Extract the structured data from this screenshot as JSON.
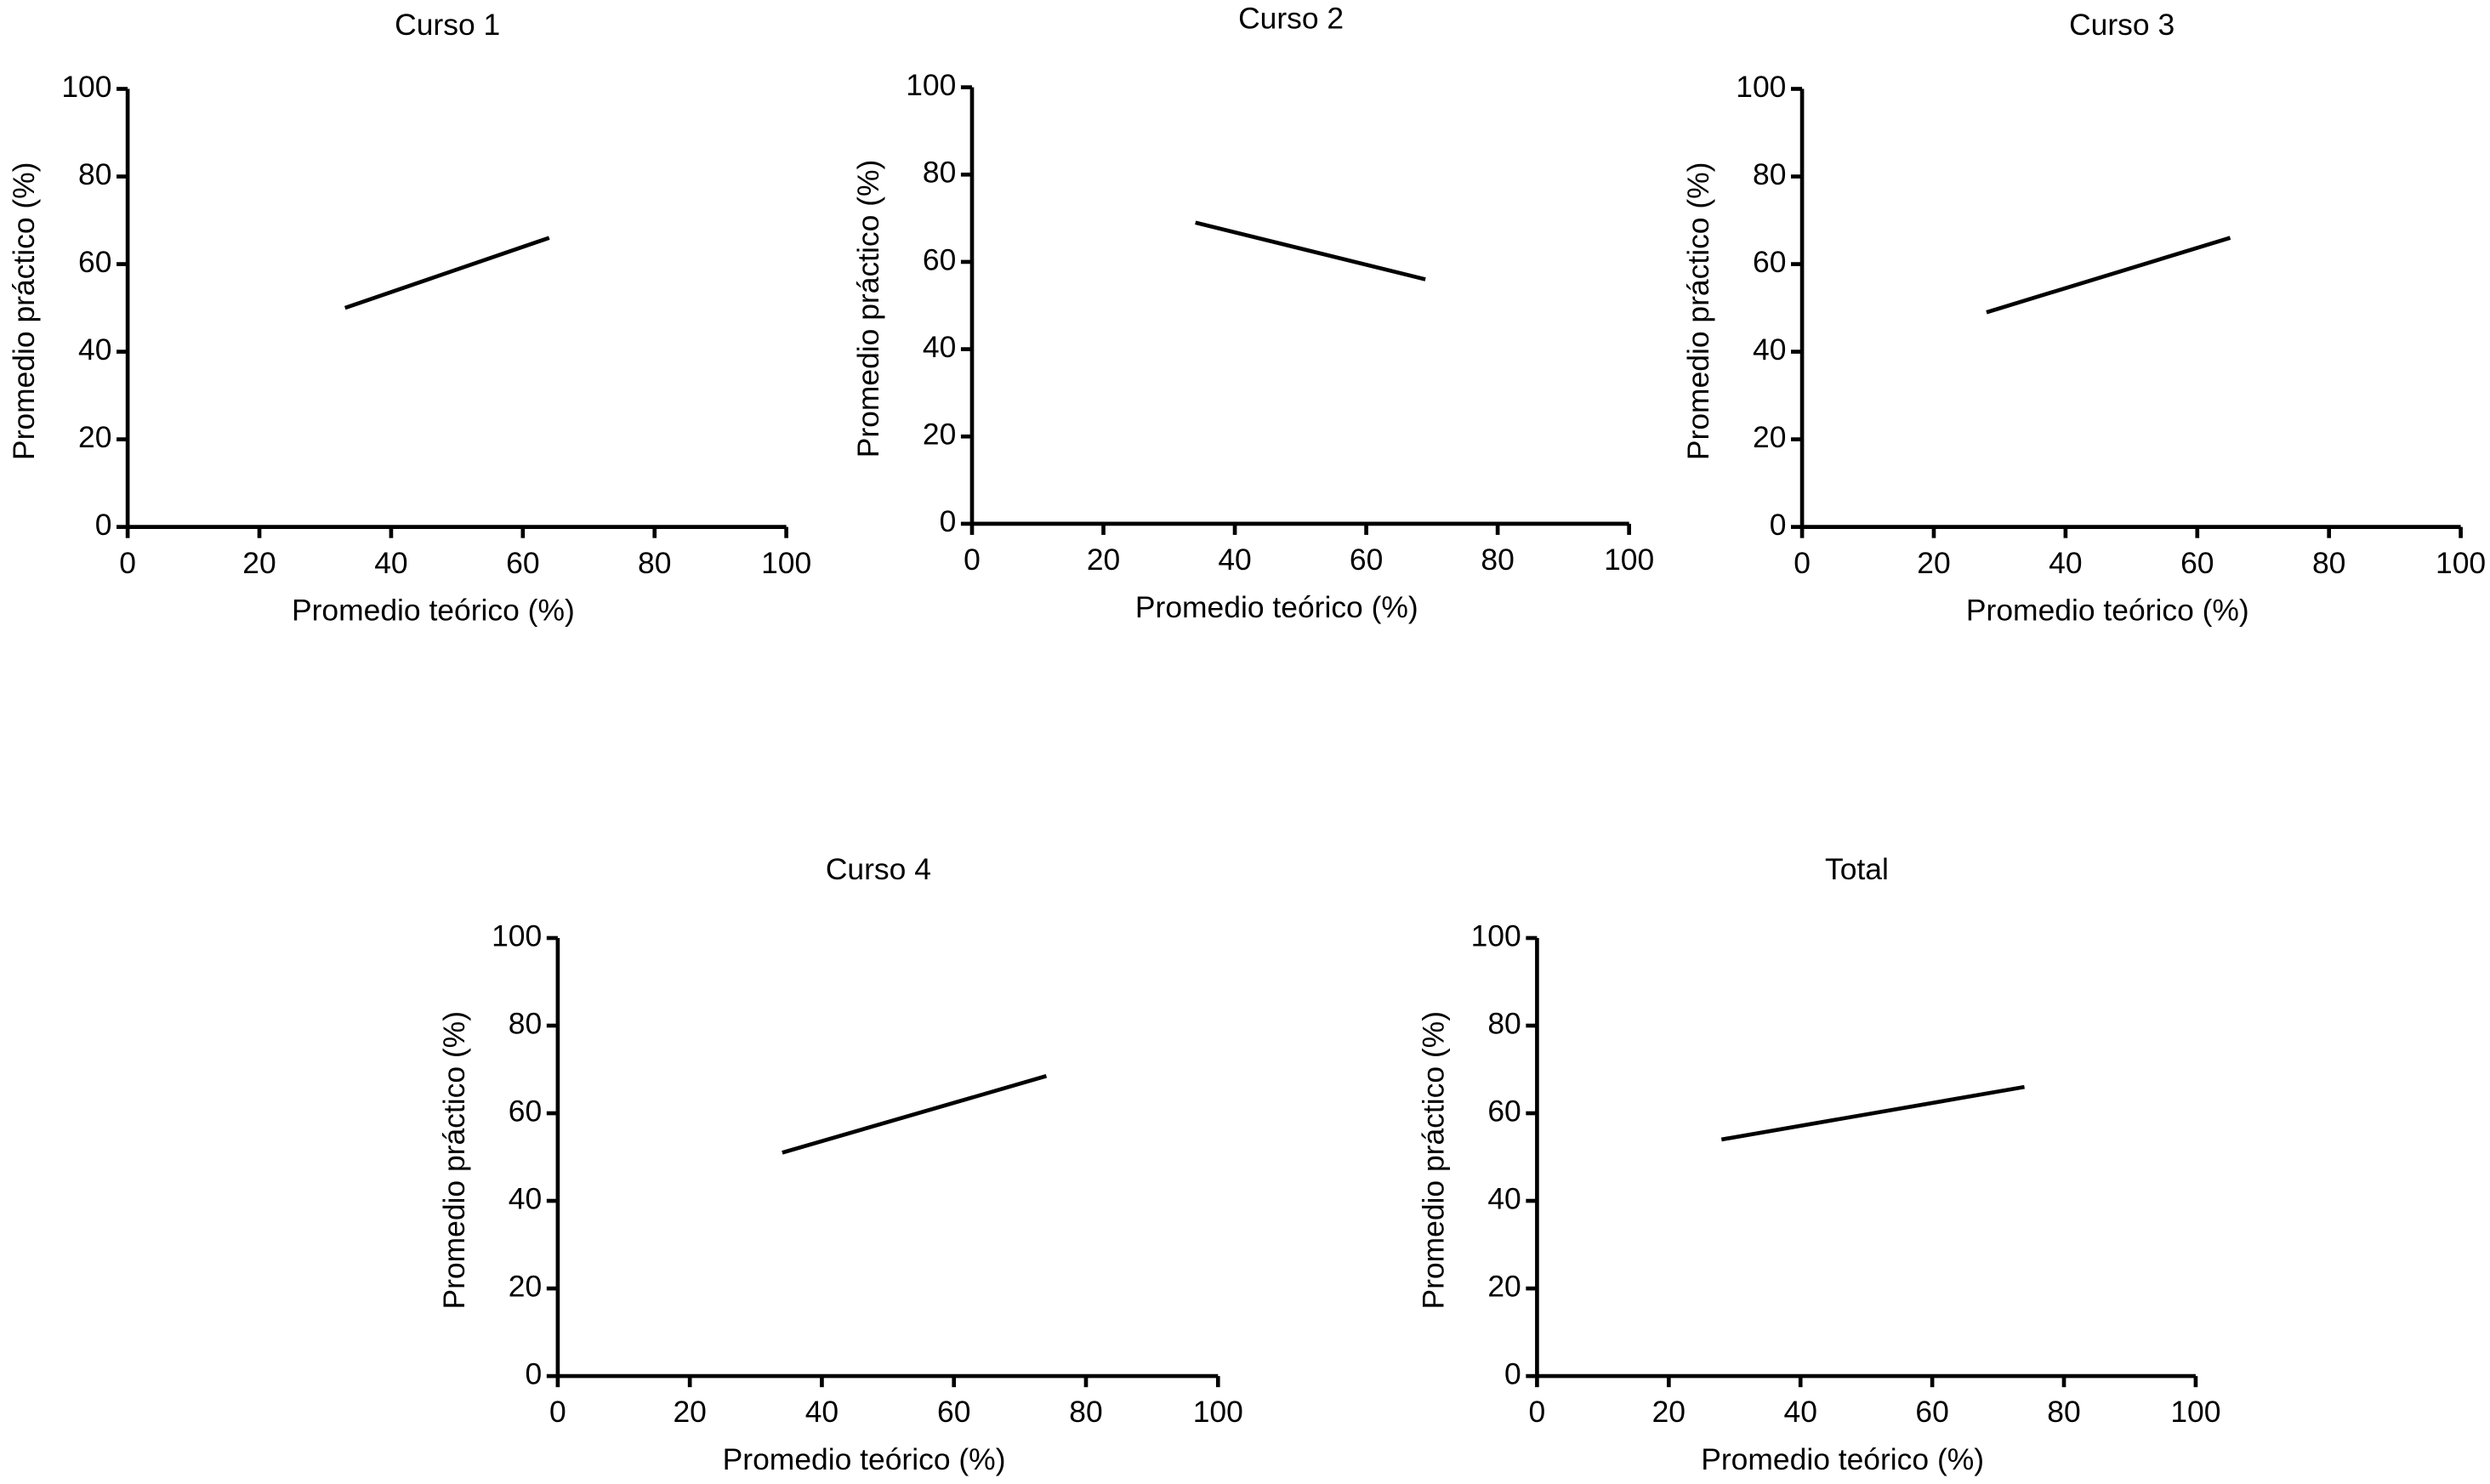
{
  "chart_data": [
    {
      "type": "line",
      "title": "Curso 1",
      "x_label": "Promedio teórico (%)",
      "y_label": "Promedio práctico (%)",
      "x": [
        33,
        64
      ],
      "values": [
        50,
        66
      ],
      "color": "#000000",
      "xlim": [
        0,
        100
      ],
      "ylim": [
        0,
        100
      ],
      "xticks": [
        0,
        20,
        40,
        60,
        80,
        100
      ],
      "yticks": [
        0,
        20,
        40,
        60,
        80,
        100
      ]
    },
    {
      "type": "line",
      "title": "Curso 2",
      "x_label": "Promedio teórico (%)",
      "y_label": "Promedio práctico (%)",
      "x": [
        34,
        69
      ],
      "values": [
        69,
        56
      ],
      "color": "#000000",
      "xlim": [
        0,
        100
      ],
      "ylim": [
        0,
        100
      ],
      "xticks": [
        0,
        20,
        40,
        60,
        80,
        100
      ],
      "yticks": [
        0,
        20,
        40,
        60,
        80,
        100
      ]
    },
    {
      "type": "line",
      "title": "Curso 3",
      "x_label": "Promedio teórico (%)",
      "y_label": "Promedio práctico (%)",
      "x": [
        28,
        65
      ],
      "values": [
        49,
        66
      ],
      "color": "#000000",
      "xlim": [
        0,
        100
      ],
      "ylim": [
        0,
        100
      ],
      "xticks": [
        0,
        20,
        40,
        60,
        80,
        100
      ],
      "yticks": [
        0,
        20,
        40,
        60,
        80,
        100
      ]
    },
    {
      "type": "line",
      "title": "Curso 4",
      "x_label": "Promedio teórico (%)",
      "y_label": "Promedio práctico (%)",
      "x": [
        34,
        74
      ],
      "values": [
        51,
        68.5
      ],
      "color": "#000000",
      "xlim": [
        0,
        100
      ],
      "ylim": [
        0,
        100
      ],
      "xticks": [
        0,
        20,
        40,
        60,
        80,
        100
      ],
      "yticks": [
        0,
        20,
        40,
        60,
        80,
        100
      ]
    },
    {
      "type": "line",
      "title": "Total",
      "x_label": "Promedio teórico (%)",
      "y_label": "Promedio práctico (%)",
      "x": [
        28,
        74
      ],
      "values": [
        54,
        66
      ],
      "color": "#000000",
      "xlim": [
        0,
        100
      ],
      "ylim": [
        0,
        100
      ],
      "xticks": [
        0,
        20,
        40,
        60,
        80,
        100
      ],
      "yticks": [
        0,
        20,
        40,
        60,
        80,
        100
      ]
    }
  ]
}
